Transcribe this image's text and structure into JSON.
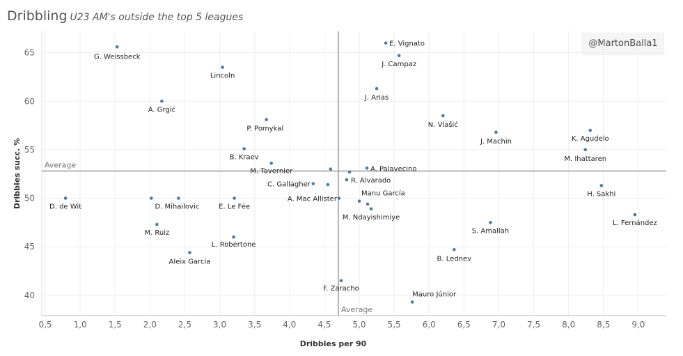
{
  "header": {
    "title": "Dribbling",
    "subtitle": "U23 AM's outside the top 5 leagues"
  },
  "credit": "@MartonBalla1",
  "colors": {
    "point": "#4e79a7",
    "reference": "#999999",
    "grid": "#eeeeee"
  },
  "chart_data": {
    "type": "scatter",
    "xlabel": "Dribbles per 90",
    "ylabel": "Dribbles succ. %",
    "xlim": [
      0.45,
      9.4
    ],
    "ylim": [
      37.9,
      67.2
    ],
    "xticks": [
      "0,5",
      "1,0",
      "1,5",
      "2,0",
      "2,5",
      "3,0",
      "3,5",
      "4,0",
      "4,5",
      "5,0",
      "5,5",
      "6,0",
      "6,5",
      "7,0",
      "7,5",
      "8,0",
      "8,5",
      "9,0"
    ],
    "xtick_values": [
      0.5,
      1.0,
      1.5,
      2.0,
      2.5,
      3.0,
      3.5,
      4.0,
      4.5,
      5.0,
      5.5,
      6.0,
      6.5,
      7.0,
      7.5,
      8.0,
      8.5,
      9.0
    ],
    "yticks": [
      "40",
      "45",
      "50",
      "55",
      "60",
      "65"
    ],
    "ytick_values": [
      40,
      45,
      50,
      55,
      60,
      65
    ],
    "reference_lines": {
      "x_average": 4.7,
      "y_average": 52.8,
      "x_label": "Average",
      "y_label": "Average"
    },
    "points": [
      {
        "label": "G. Weissbeck",
        "x": 1.53,
        "y": 65.6
      },
      {
        "label": "E. Vignato",
        "x": 5.38,
        "y": 66.0
      },
      {
        "label": "J. Campaz",
        "x": 5.57,
        "y": 64.7
      },
      {
        "label": "Lincoln",
        "x": 3.04,
        "y": 63.5
      },
      {
        "label": "J. Arias",
        "x": 5.25,
        "y": 61.3
      },
      {
        "label": "A. Grgić",
        "x": 2.17,
        "y": 60.0
      },
      {
        "label": "N. Vlašić",
        "x": 6.2,
        "y": 58.5
      },
      {
        "label": "P. Pomykal",
        "x": 3.67,
        "y": 58.1
      },
      {
        "label": "J. Machin",
        "x": 6.96,
        "y": 56.8
      },
      {
        "label": "K. Agudelo",
        "x": 8.31,
        "y": 57.0
      },
      {
        "label": "B. Kraev",
        "x": 3.35,
        "y": 55.1
      },
      {
        "label": "M. Ihattaren",
        "x": 8.24,
        "y": 55.0
      },
      {
        "label": "M. Tavernier",
        "x": 3.74,
        "y": 53.6
      },
      {
        "label": "A. Palavecino",
        "x": 5.11,
        "y": 53.1
      },
      {
        "label": "",
        "x": 4.59,
        "y": 53.0
      },
      {
        "label": "",
        "x": 4.86,
        "y": 52.7
      },
      {
        "label": "R. Alvarado",
        "x": 4.82,
        "y": 51.9
      },
      {
        "label": "C. Gallagher",
        "x": 4.34,
        "y": 51.5
      },
      {
        "label": "",
        "x": 4.55,
        "y": 51.4
      },
      {
        "label": "H. Sakhi",
        "x": 8.47,
        "y": 51.3
      },
      {
        "label": "D. de Wit",
        "x": 0.79,
        "y": 50.0
      },
      {
        "label": "D. Mihailovic",
        "x": 2.02,
        "y": 50.0
      },
      {
        "label": "",
        "x": 2.41,
        "y": 50.0
      },
      {
        "label": "E. Le Fée",
        "x": 3.21,
        "y": 50.0
      },
      {
        "label": "A. Mac Allister",
        "x": 4.71,
        "y": 50.0
      },
      {
        "label": "Manu García",
        "x": 5.0,
        "y": 49.7
      },
      {
        "label": "",
        "x": 5.12,
        "y": 49.4
      },
      {
        "label": "M. Ndayishimiye",
        "x": 5.17,
        "y": 48.9
      },
      {
        "label": "L. Fernández",
        "x": 8.95,
        "y": 48.3
      },
      {
        "label": "S. Amallah",
        "x": 6.88,
        "y": 47.5
      },
      {
        "label": "M. Ruiz",
        "x": 2.1,
        "y": 47.3
      },
      {
        "label": "L. Robertone",
        "x": 3.2,
        "y": 46.0
      },
      {
        "label": "B. Lednev",
        "x": 6.36,
        "y": 44.7
      },
      {
        "label": "Aleix García",
        "x": 2.57,
        "y": 44.4
      },
      {
        "label": "F. Zaracho",
        "x": 4.74,
        "y": 41.5
      },
      {
        "label": "Mauro Júnior",
        "x": 5.76,
        "y": 39.3
      }
    ]
  }
}
